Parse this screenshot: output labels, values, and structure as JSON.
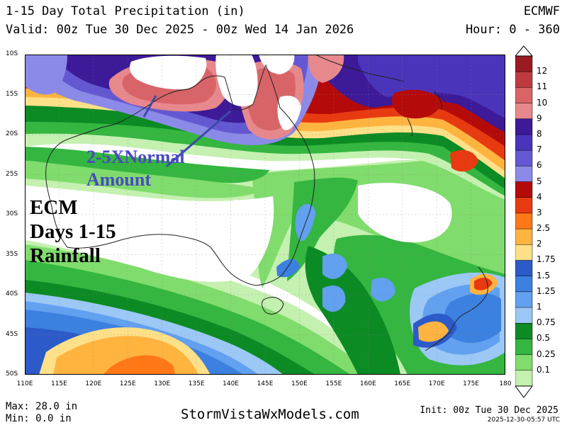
{
  "header": {
    "title": "1-15 Day Total Precipitation (in)",
    "valid": "Valid: 00z Tue 30 Dec 2025 - 00z Wed 14 Jan 2026",
    "model": "ECMWF",
    "hour": "Hour: 0 - 360"
  },
  "lat_labels": [
    "10S",
    "15S",
    "20S",
    "25S",
    "30S",
    "35S",
    "40S",
    "45S",
    "50S"
  ],
  "lon_labels": [
    "110E",
    "115E",
    "120E",
    "125E",
    "130E",
    "135E",
    "140E",
    "145E",
    "150E",
    "155E",
    "160E",
    "165E",
    "170E",
    "175E",
    "180"
  ],
  "legend": {
    "labels": [
      "12",
      "11",
      "10",
      "9",
      "8",
      "7",
      "6",
      "5",
      "4",
      "3",
      "2.5",
      "2",
      "1.75",
      "1.5",
      "1.25",
      "1",
      "0.75",
      "0.5",
      "0.25",
      "0.1"
    ],
    "colors": [
      "#9a1a22",
      "#bd3a40",
      "#d86468",
      "#e7888c",
      "#3c1a98",
      "#4a34ba",
      "#6458d2",
      "#8c8ae8",
      "#b50a0a",
      "#e83a10",
      "#ff7818",
      "#ffb440",
      "#fee088",
      "#2c5ac8",
      "#3c80e0",
      "#62a0f0",
      "#9cc8f6",
      "#0c8a24",
      "#34b640",
      "#80dc6c",
      "#c4f0b0"
    ]
  },
  "annotations": {
    "ecm_line1": "ECM",
    "ecm_line2": "Days 1-15",
    "ecm_line3": "Rainfall",
    "normal_line1": "2-5XNormal",
    "normal_line2": "Amount"
  },
  "footer": {
    "max": "Max: 28.0 in",
    "min": "Min: 0.0 in",
    "site": "StormVistaWxModels.com",
    "init": "Init: 00z Tue 30 Dec 2025",
    "stamp": "2025-12-30-05:57 UTC"
  }
}
